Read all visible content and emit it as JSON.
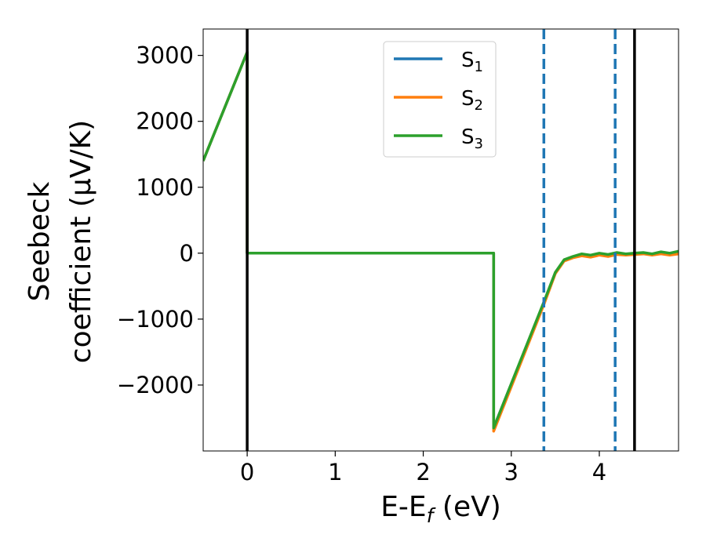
{
  "chart_data": {
    "type": "line",
    "xlabel": "E-E_f (eV)",
    "ylabel_line1": "Seebeck",
    "ylabel_line2": "coefficient  (μV/K)",
    "xlim": [
      -0.5,
      4.9
    ],
    "ylim": [
      -3000,
      3400
    ],
    "xticks": [
      0,
      1,
      2,
      3,
      4
    ],
    "yticks": [
      -2000,
      -1000,
      0,
      1000,
      2000,
      3000
    ],
    "grid": false,
    "legend_position": "top-center",
    "vertical_lines": [
      {
        "x": 0.0,
        "style": "solid",
        "color": "#000000"
      },
      {
        "x": 4.4,
        "style": "solid",
        "color": "#000000"
      },
      {
        "x": 3.37,
        "style": "dashed",
        "color": "#1f77b4"
      },
      {
        "x": 4.18,
        "style": "dashed",
        "color": "#1f77b4"
      }
    ],
    "series": [
      {
        "name": "S_1",
        "color": "#1f77b4",
        "x": [
          -0.5,
          0.0,
          0.0,
          2.8,
          2.8,
          3.37,
          3.5,
          3.6,
          3.7,
          3.8,
          3.9,
          4.0,
          4.1,
          4.2,
          4.3,
          4.4,
          4.5,
          4.6,
          4.7,
          4.8,
          4.9
        ],
        "y": [
          1400,
          3050,
          0,
          0,
          -2650,
          -760,
          -300,
          -110,
          -60,
          -20,
          -40,
          -10,
          -30,
          0,
          -20,
          -10,
          0,
          -20,
          10,
          -10,
          20
        ]
      },
      {
        "name": "S_2",
        "color": "#ff7f0e",
        "x": [
          -0.5,
          0.0,
          0.0,
          2.8,
          2.8,
          3.37,
          3.5,
          3.6,
          3.7,
          3.8,
          3.9,
          4.0,
          4.1,
          4.2,
          4.3,
          4.4,
          4.5,
          4.6,
          4.7,
          4.8,
          4.9
        ],
        "y": [
          1400,
          3050,
          0,
          0,
          -2700,
          -780,
          -310,
          -120,
          -70,
          -40,
          -60,
          -30,
          -50,
          -20,
          -30,
          -20,
          -10,
          -30,
          -10,
          -30,
          -10
        ]
      },
      {
        "name": "S_3",
        "color": "#2ca02c",
        "x": [
          -0.5,
          0.0,
          0.0,
          2.8,
          2.8,
          3.37,
          3.5,
          3.6,
          3.7,
          3.8,
          3.9,
          4.0,
          4.1,
          4.2,
          4.3,
          4.4,
          4.5,
          4.6,
          4.7,
          4.8,
          4.9
        ],
        "y": [
          1400,
          3050,
          0,
          0,
          -2650,
          -740,
          -290,
          -100,
          -50,
          -10,
          -30,
          0,
          -20,
          10,
          -10,
          0,
          10,
          -10,
          20,
          0,
          30
        ]
      }
    ],
    "legend": [
      {
        "base": "S",
        "sub": "1",
        "color": "#1f77b4"
      },
      {
        "base": "S",
        "sub": "2",
        "color": "#ff7f0e"
      },
      {
        "base": "S",
        "sub": "3",
        "color": "#2ca02c"
      }
    ]
  }
}
